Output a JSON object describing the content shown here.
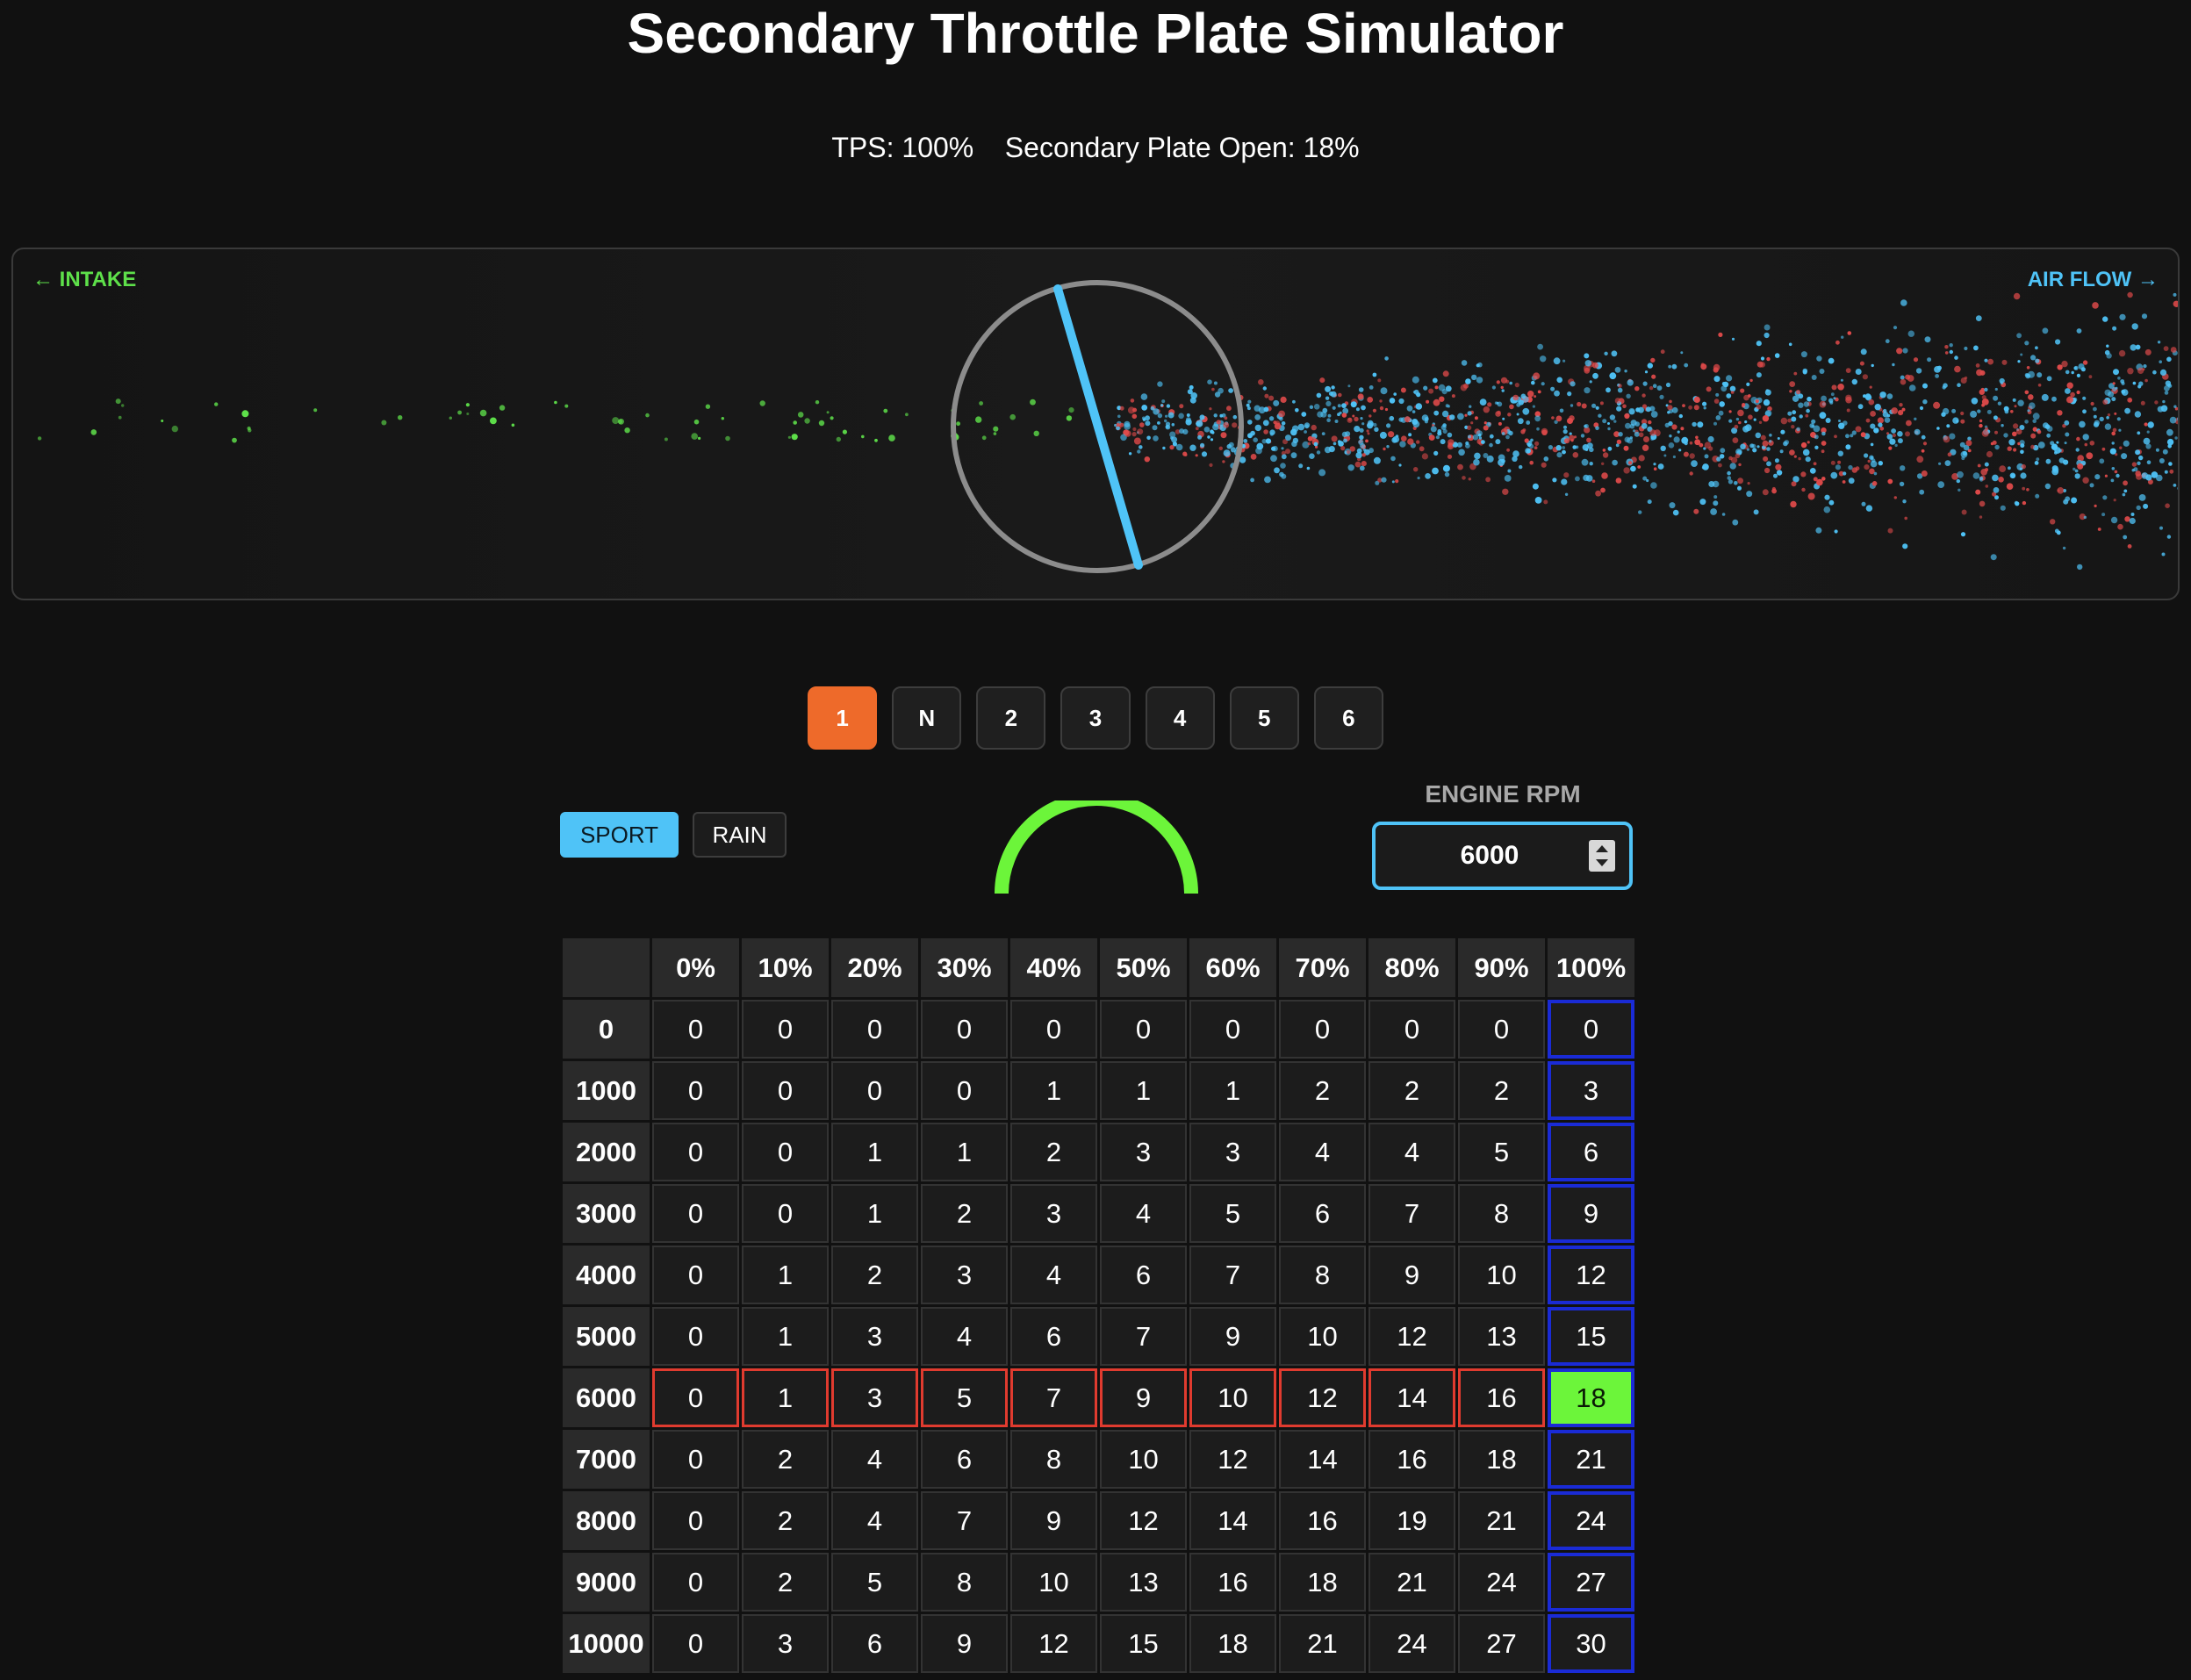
{
  "title": "Secondary Throttle Plate Simulator",
  "status": {
    "tps_label": "TPS:",
    "tps_value": "100%",
    "plate_label": "Secondary Plate Open:",
    "plate_value": "18%"
  },
  "simulation": {
    "intake_label": "← INTAKE",
    "airflow_label": "AIR FLOW →",
    "plate_color": "#4fc3f7",
    "intake_particle_color": "#5ee04a",
    "airflow_particle_colors": [
      "#4fc3f7",
      "#e04a4a"
    ]
  },
  "gears": {
    "items": [
      "1",
      "N",
      "2",
      "3",
      "4",
      "5",
      "6"
    ],
    "selected": "1",
    "active_color": "#ee6a2a"
  },
  "modes": {
    "sport": "SPORT",
    "rain": "RAIN",
    "selected": "SPORT",
    "active_color": "#4fc3f7"
  },
  "gauge": {
    "color": "#6cf53a"
  },
  "rpm": {
    "label": "ENGINE RPM",
    "value": "6000"
  },
  "map": {
    "column_headers": [
      "0%",
      "10%",
      "20%",
      "30%",
      "40%",
      "50%",
      "60%",
      "70%",
      "80%",
      "90%",
      "100%"
    ],
    "rows": [
      {
        "rpm": "0",
        "values": [
          "0",
          "0",
          "0",
          "0",
          "0",
          "0",
          "0",
          "0",
          "0",
          "0",
          "0"
        ]
      },
      {
        "rpm": "1000",
        "values": [
          "0",
          "0",
          "0",
          "0",
          "1",
          "1",
          "1",
          "2",
          "2",
          "2",
          "3"
        ]
      },
      {
        "rpm": "2000",
        "values": [
          "0",
          "0",
          "1",
          "1",
          "2",
          "3",
          "3",
          "4",
          "4",
          "5",
          "6"
        ]
      },
      {
        "rpm": "3000",
        "values": [
          "0",
          "0",
          "1",
          "2",
          "3",
          "4",
          "5",
          "6",
          "7",
          "8",
          "9"
        ]
      },
      {
        "rpm": "4000",
        "values": [
          "0",
          "1",
          "2",
          "3",
          "4",
          "6",
          "7",
          "8",
          "9",
          "10",
          "12"
        ]
      },
      {
        "rpm": "5000",
        "values": [
          "0",
          "1",
          "3",
          "4",
          "6",
          "7",
          "9",
          "10",
          "12",
          "13",
          "15"
        ]
      },
      {
        "rpm": "6000",
        "values": [
          "0",
          "1",
          "3",
          "5",
          "7",
          "9",
          "10",
          "12",
          "14",
          "16",
          "18"
        ]
      },
      {
        "rpm": "7000",
        "values": [
          "0",
          "2",
          "4",
          "6",
          "8",
          "10",
          "12",
          "14",
          "16",
          "18",
          "21"
        ]
      },
      {
        "rpm": "8000",
        "values": [
          "0",
          "2",
          "4",
          "7",
          "9",
          "12",
          "14",
          "16",
          "19",
          "21",
          "24"
        ]
      },
      {
        "rpm": "9000",
        "values": [
          "0",
          "2",
          "5",
          "8",
          "10",
          "13",
          "16",
          "18",
          "21",
          "24",
          "27"
        ]
      },
      {
        "rpm": "10000",
        "values": [
          "0",
          "3",
          "6",
          "9",
          "12",
          "15",
          "18",
          "21",
          "24",
          "27",
          "30"
        ]
      }
    ],
    "active_row": "6000",
    "active_column": "100%",
    "row_highlight_color": "#e03b2f",
    "column_highlight_color": "#1a2bd6",
    "cell_highlight_color": "#6cf53a"
  }
}
